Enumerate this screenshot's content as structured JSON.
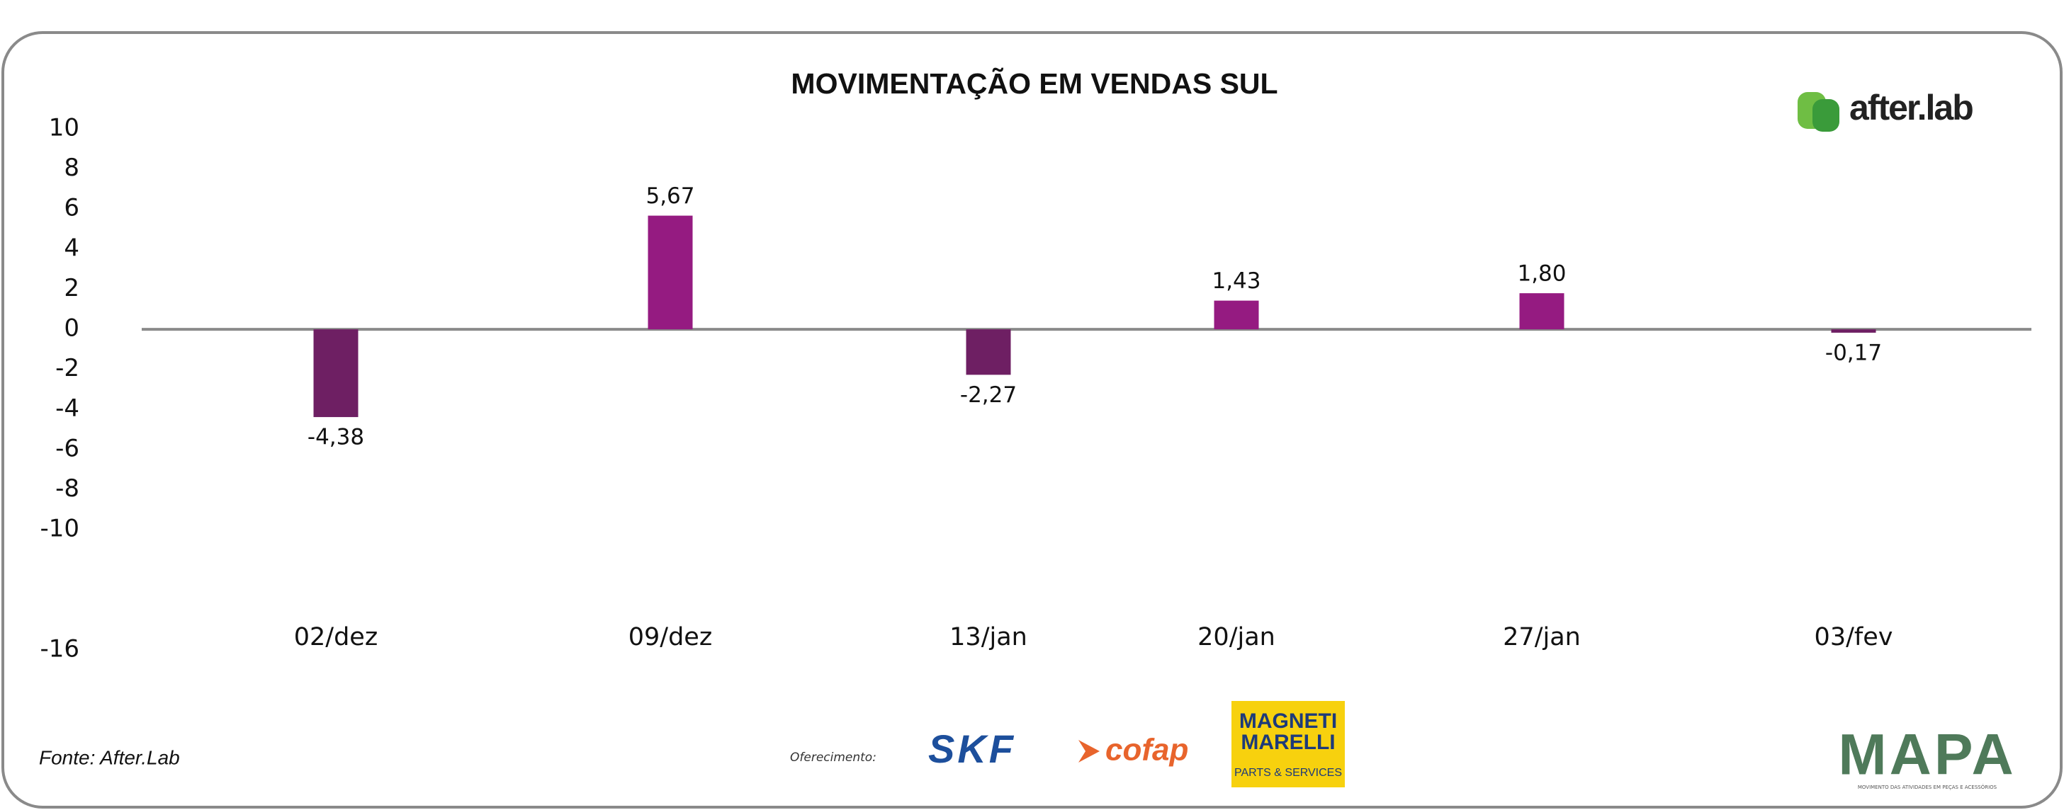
{
  "chart_data": {
    "type": "bar",
    "title": "MOVIMENTAÇÃO EM VENDAS SUL",
    "categories": [
      "02/dez",
      "09/dez",
      "13/jan",
      "20/jan",
      "27/jan",
      "03/fev"
    ],
    "values": [
      -4.38,
      5.67,
      -2.27,
      1.43,
      1.8,
      -0.17
    ],
    "value_labels": [
      "-4,38",
      "5,67",
      "-2,27",
      "1,43",
      "1,80",
      "-0,17"
    ],
    "colors": [
      "#6e1f63",
      "#951b81",
      "#6e1f63",
      "#951b81",
      "#951b81",
      "#6e1f63"
    ],
    "ylim": [
      -16,
      10
    ],
    "yticks": [
      10,
      8,
      6,
      4,
      2,
      0,
      -2,
      -4,
      -6,
      -8,
      -10,
      -16
    ],
    "source": "Fonte: After.Lab"
  },
  "branding": {
    "logo": "after.lab",
    "sponsor_label": "Oferecimento:",
    "sponsors": [
      "SKF",
      "cofap",
      "MAGNETI",
      "MARELLI",
      "PARTS & SERVICES"
    ],
    "footer_logo": "MAPA",
    "footer_tagline": "MOVIMENTO DAS ATIVIDADES EM PEÇAS E ACESSÓRIOS"
  }
}
